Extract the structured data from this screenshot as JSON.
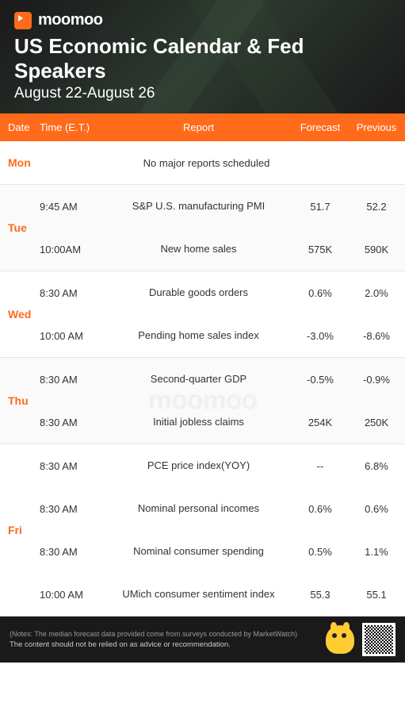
{
  "brand": {
    "name": "moomoo"
  },
  "header": {
    "title": "US Economic Calendar & Fed Speakers",
    "date_range": "August 22-August 26"
  },
  "columns": {
    "date": "Date",
    "time": "Time (E.T.)",
    "report": "Report",
    "forecast": "Forecast",
    "previous": "Previous"
  },
  "colors": {
    "accent": "#ff6b1a",
    "header_bg": "#1a1a1a",
    "text": "#333333",
    "day_label": "#ff6b1a",
    "border": "#e5e5e5"
  },
  "days": [
    {
      "label": "Mon",
      "no_reports": "No major reports scheduled",
      "rows": []
    },
    {
      "label": "Tue",
      "rows": [
        {
          "time": "9:45 AM",
          "report": "S&P U.S. manufacturing PMI",
          "forecast": "51.7",
          "previous": "52.2"
        },
        {
          "time": "10:00AM",
          "report": "New home sales",
          "forecast": "575K",
          "previous": "590K"
        }
      ]
    },
    {
      "label": "Wed",
      "rows": [
        {
          "time": "8:30 AM",
          "report": "Durable goods orders",
          "forecast": "0.6%",
          "previous": "2.0%"
        },
        {
          "time": "10:00 AM",
          "report": "Pending home sales index",
          "forecast": "-3.0%",
          "previous": "-8.6%"
        }
      ]
    },
    {
      "label": "Thu",
      "watermark": true,
      "rows": [
        {
          "time": "8:30 AM",
          "report": "Second-quarter GDP",
          "forecast": "-0.5%",
          "previous": "-0.9%"
        },
        {
          "time": "8:30 AM",
          "report": "Initial jobless claims",
          "forecast": "254K",
          "previous": "250K"
        }
      ]
    },
    {
      "label": "Fri",
      "rows": [
        {
          "time": "8:30 AM",
          "report": "PCE price index(YOY)",
          "forecast": "--",
          "previous": "6.8%"
        },
        {
          "time": "8:30 AM",
          "report": "Nominal personal incomes",
          "forecast": "0.6%",
          "previous": "0.6%"
        },
        {
          "time": "8:30 AM",
          "report": "Nominal consumer spending",
          "forecast": "0.5%",
          "previous": "1.1%"
        },
        {
          "time": "10:00 AM",
          "report": "UMich consumer sentiment index",
          "forecast": "55.3",
          "previous": "55.1"
        }
      ]
    }
  ],
  "footer": {
    "notes": "(Notes: The median forecast data provided come from surveys conducted by MarketWatch)",
    "disclaimer": "The content should not be relied on as advice or recommendation."
  }
}
